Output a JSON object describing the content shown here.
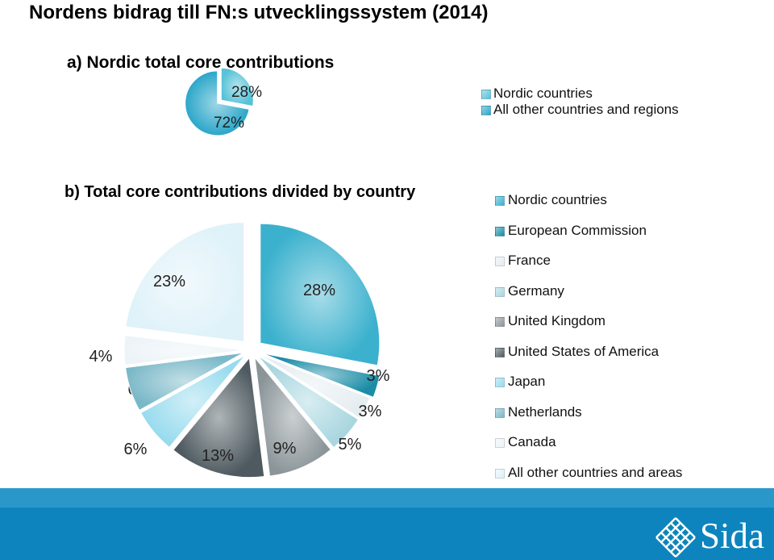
{
  "page": {
    "title": "Nordens bidrag till FN:s utvecklingssystem (2014)"
  },
  "colors": {
    "footer": "#0d84bd",
    "footer_light": "#2a97cb"
  },
  "logo": {
    "text": "Sida",
    "icon": "sida-lattice-icon"
  },
  "chart_data": [
    {
      "type": "pie",
      "title": "a) Nordic total core contributions",
      "categories": [
        "Nordic countries",
        "All other countries and regions"
      ],
      "values": [
        28,
        72
      ],
      "labels": [
        "28%",
        "72%"
      ],
      "colors": [
        "#57c2d8",
        "#2aa6c9"
      ],
      "exploded": true,
      "legend": "right"
    },
    {
      "type": "pie",
      "title": "b) Total core contributions divided by country",
      "categories": [
        "Nordic countries",
        "European Commission",
        "France",
        "Germany",
        "United Kingdom",
        "United States of America",
        "Japan",
        "Netherlands",
        "Canada",
        "All other countries and areas"
      ],
      "values": [
        28,
        3,
        3,
        5,
        9,
        13,
        6,
        6,
        4,
        23
      ],
      "labels": [
        "28%",
        "3%",
        "3%",
        "5%",
        "9%",
        "13%",
        "6%",
        "6%",
        "4%",
        "23%"
      ],
      "colors": [
        "#3bb1cd",
        "#1a8ca6",
        "#e6edf1",
        "#a9d6e0",
        "#8b9599",
        "#4e5a60",
        "#98dbee",
        "#7ab8c8",
        "#edf4f8",
        "#dff2f9"
      ],
      "exploded": true,
      "legend": "right"
    }
  ]
}
